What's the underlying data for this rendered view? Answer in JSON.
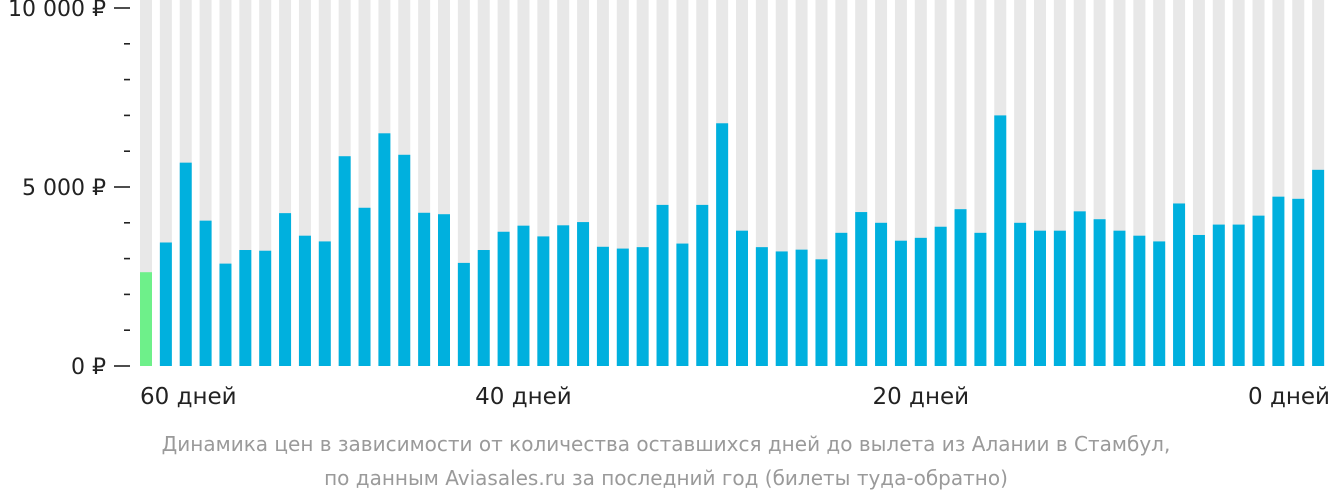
{
  "chart_data": {
    "type": "bar",
    "currency": "₽",
    "ylim": [
      0,
      10000
    ],
    "y_ticks": [
      {
        "value": 0,
        "label": "0 ₽"
      },
      {
        "value": 5000,
        "label": "5 000 ₽"
      },
      {
        "value": 10000,
        "label": "10 000 ₽"
      }
    ],
    "y_minor_step": 1000,
    "x_tick_labels": [
      {
        "days": 60,
        "label": "60 дней"
      },
      {
        "days": 40,
        "label": "40 дней"
      },
      {
        "days": 20,
        "label": "20 дней"
      },
      {
        "days": 0,
        "label": "0 дней"
      }
    ],
    "grid": true,
    "colors": {
      "bar": "#00b0de",
      "highlight_bar": "#6ef08a",
      "background_column": "#e8e8e8",
      "axis": "#222222",
      "caption": "#9a9a9a"
    },
    "highlight_index": 0,
    "days": [
      59,
      58,
      57,
      56,
      55,
      54,
      53,
      52,
      51,
      50,
      49,
      48,
      47,
      46,
      45,
      44,
      43,
      42,
      41,
      40,
      39,
      38,
      37,
      36,
      35,
      34,
      33,
      32,
      31,
      30,
      29,
      28,
      27,
      26,
      25,
      24,
      23,
      22,
      21,
      20,
      19,
      18,
      17,
      16,
      15,
      14,
      13,
      12,
      11,
      10,
      9,
      8,
      7,
      6,
      5,
      4,
      3,
      2,
      1,
      0
    ],
    "values": [
      2620,
      3450,
      5680,
      4060,
      2860,
      3240,
      3220,
      4270,
      3640,
      3480,
      5860,
      4420,
      6500,
      5900,
      4280,
      4240,
      2880,
      3240,
      3750,
      3920,
      3620,
      3930,
      4020,
      3330,
      3280,
      3320,
      4500,
      3420,
      4500,
      6780,
      3780,
      3320,
      3200,
      3250,
      2980,
      3720,
      4300,
      4000,
      3500,
      3580,
      3890,
      4380,
      3720,
      7000,
      4000,
      3780,
      3780,
      4320,
      4100,
      3780,
      3640,
      3480,
      4540,
      3660,
      3950,
      3950,
      4200,
      4730,
      4670,
      5480
    ]
  },
  "caption": {
    "line1": "Динамика цен в зависимости от количества оставшихся дней до вылета из Алании в Стамбул,",
    "line2": "по данным Aviasales.ru за последний год (билеты туда-обратно)"
  }
}
